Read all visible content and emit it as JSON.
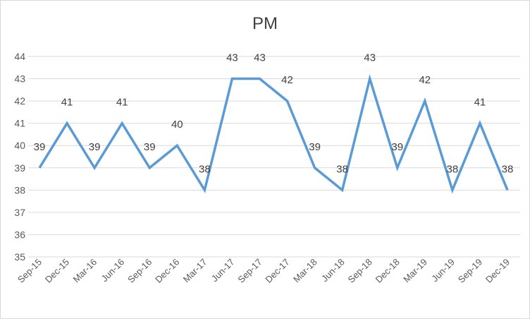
{
  "chart_data": {
    "type": "line",
    "title": "PM",
    "xlabel": "",
    "ylabel": "",
    "categories": [
      "Sep-15",
      "Dec-15",
      "Mar-16",
      "Jun-16",
      "Sep-16",
      "Dec-16",
      "Mar-17",
      "Jun-17",
      "Sep-17",
      "Dec-17",
      "Mar-18",
      "Jun-18",
      "Sep-18",
      "Dec-18",
      "Mar-19",
      "Jun-19",
      "Sep-19",
      "Dec-19"
    ],
    "values": [
      39,
      41,
      39,
      41,
      39,
      40,
      38,
      43,
      43,
      42,
      39,
      38,
      43,
      39,
      42,
      38,
      41,
      38
    ],
    "ylim": [
      35,
      44
    ],
    "yticks": [
      35,
      36,
      37,
      38,
      39,
      40,
      41,
      42,
      43,
      44
    ],
    "grid": true,
    "legend": "none",
    "line_color": "#5b9bd5",
    "data_labels": true
  }
}
